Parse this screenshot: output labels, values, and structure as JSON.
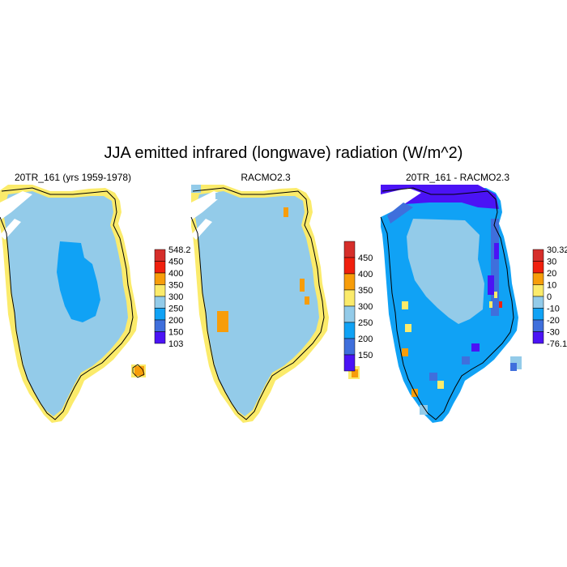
{
  "title": "JJA emitted infrared (longwave) radiation (W/m^2)",
  "panels": [
    {
      "title": "20TR_161 (yrs 1959-1978)",
      "colorbar": {
        "labels": [
          "548.2",
          "450",
          "400",
          "350",
          "300",
          "250",
          "200",
          "150",
          "103"
        ],
        "colors": [
          "#d62e2a",
          "#f0200e",
          "#f79d0a",
          "#fbeb6b",
          "#93cbe9",
          "#10a2f5",
          "#3f6fdc",
          "#4b13f5"
        ]
      }
    },
    {
      "title": "RACMO2.3",
      "colorbar": {
        "labels": [
          "450",
          "400",
          "350",
          "300",
          "250",
          "200",
          "150"
        ],
        "colors": [
          "#d62e2a",
          "#f0200e",
          "#f79d0a",
          "#fbeb6b",
          "#93cbe9",
          "#10a2f5",
          "#3f6fdc",
          "#4b13f5"
        ]
      }
    },
    {
      "title": "20TR_161 - RACMO2.3",
      "colorbar": {
        "labels": [
          "30.32",
          "30",
          "20",
          "10",
          "0",
          "-10",
          "-20",
          "-30",
          "-76.1"
        ],
        "colors": [
          "#d62e2a",
          "#f0200e",
          "#f79d0a",
          "#fbeb6b",
          "#93cbe9",
          "#10a2f5",
          "#3f6fdc",
          "#4b13f5"
        ]
      }
    }
  ],
  "chart_data": {
    "type": "heatmap",
    "title": "JJA emitted infrared (longwave) radiation (W/m^2)",
    "maps": [
      {
        "title": "20TR_161 (yrs 1959-1978)",
        "levels": [
          103,
          150,
          200,
          250,
          300,
          350,
          400,
          450,
          548.2
        ],
        "dominant_range": [
          250,
          300
        ],
        "interior_range": [
          200,
          250
        ],
        "coastal_range": [
          300,
          350
        ],
        "southeast_islands_range": [
          350,
          400
        ]
      },
      {
        "title": "RACMO2.3",
        "levels": [
          150,
          200,
          250,
          300,
          350,
          400,
          450
        ],
        "dominant_range": [
          250,
          300
        ],
        "coastal_range": [
          300,
          350
        ],
        "southwest_patch_range": [
          350,
          400
        ]
      },
      {
        "title": "20TR_161 - RACMO2.3",
        "levels": [
          -76.1,
          -30,
          -20,
          -10,
          0,
          10,
          20,
          30,
          30.32
        ],
        "dominant_range": [
          -10,
          0
        ],
        "margin_range": [
          -30,
          -10
        ],
        "north_coast_range": [
          -76.1,
          -30
        ]
      }
    ]
  }
}
